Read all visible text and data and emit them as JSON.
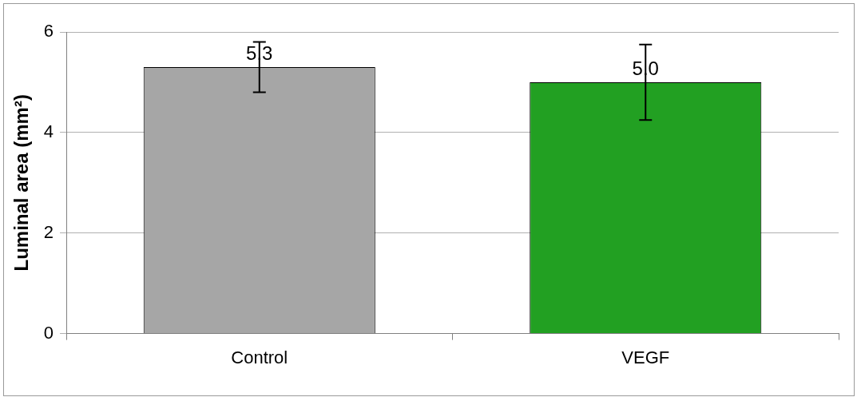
{
  "chart_data": {
    "type": "bar",
    "ylabel": "Luminal area (mm²)",
    "categories": [
      "Control",
      "VEGF"
    ],
    "values": [
      5.3,
      5.0
    ],
    "colors": [
      "#a6a6a6",
      "#22a022"
    ],
    "errors": [
      0.5,
      0.75
    ],
    "value_labels": [
      "5.3",
      "5.0"
    ],
    "ylim": [
      0,
      6
    ],
    "yticks": [
      0,
      2,
      4,
      6
    ],
    "grid": "y",
    "legend": false
  }
}
